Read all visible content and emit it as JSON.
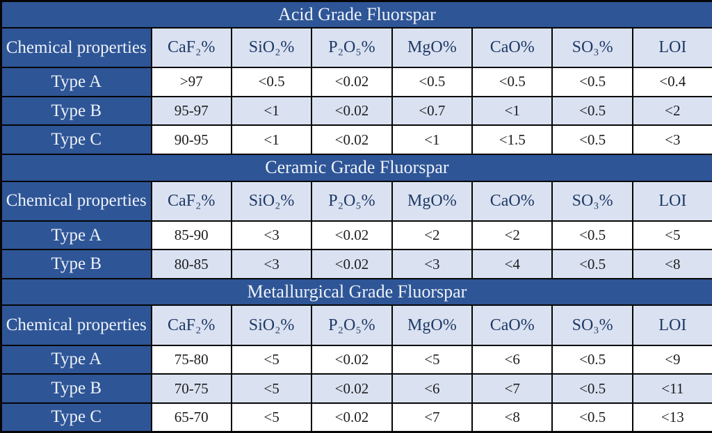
{
  "colors": {
    "dark_blue_band": "#2e5596",
    "light_blue_cell": "#dae2f2",
    "header_text_navy": "#1f3864",
    "band_text_white": "#eef2f9",
    "grid_line": "#050505",
    "data_text": "#1c1c1c"
  },
  "chart_data": {
    "type": "table",
    "column_headers": [
      "Chemical properties",
      "CaF₂%",
      "SiO₂%",
      "P₂O₅%",
      "MgO%",
      "CaO%",
      "SO₃%",
      "LOI"
    ],
    "layout_hint": "column header row is repeated under each section title; label column and title bands are dark blue; data rows alternate white / light blue",
    "sections": [
      {
        "title": "Acid Grade Fluorspar",
        "rows": [
          {
            "label": "Type A",
            "values": [
              ">97",
              "<0.5",
              "<0.02",
              "<0.5",
              "<0.5",
              "<0.5",
              "<0.4"
            ]
          },
          {
            "label": "Type B",
            "values": [
              "95-97",
              "<1",
              "<0.02",
              "<0.7",
              "<1",
              "<0.5",
              "<2"
            ]
          },
          {
            "label": "Type C",
            "values": [
              "90-95",
              "<1",
              "<0.02",
              "<1",
              "<1.5",
              "<0.5",
              "<3"
            ]
          }
        ]
      },
      {
        "title": "Ceramic Grade Fluorspar",
        "rows": [
          {
            "label": "Type A",
            "values": [
              "85-90",
              "<3",
              "<0.02",
              "<2",
              "<2",
              "<0.5",
              "<5"
            ]
          },
          {
            "label": "Type B",
            "values": [
              "80-85",
              "<3",
              "<0.02",
              "<3",
              "<4",
              "<0.5",
              "<8"
            ]
          }
        ]
      },
      {
        "title": "Metallurgical Grade Fluorspar",
        "rows": [
          {
            "label": "Type A",
            "values": [
              "75-80",
              "<5",
              "<0.02",
              "<5",
              "<6",
              "<0.5",
              "<9"
            ]
          },
          {
            "label": "Type B",
            "values": [
              "70-75",
              "<5",
              "<0.02",
              "<6",
              "<7",
              "<0.5",
              "<11"
            ]
          },
          {
            "label": "Type C",
            "values": [
              "65-70",
              "<5",
              "<0.02",
              "<7",
              "<8",
              "<0.5",
              "<13"
            ]
          }
        ]
      }
    ]
  }
}
